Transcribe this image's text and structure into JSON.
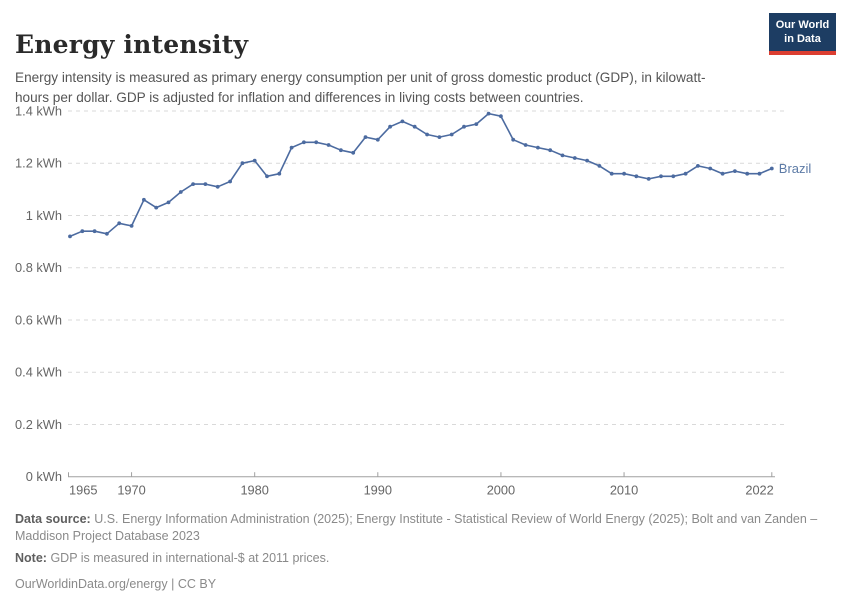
{
  "header": {
    "title": "Energy intensity",
    "subtitle": "Energy intensity is measured as primary energy consumption per unit of gross domestic product (GDP), in kilowatt-hours per dollar. GDP is adjusted for inflation and differences in living costs between countries."
  },
  "logo": {
    "line1": "Our World",
    "line2": "in Data",
    "background_color": "#1d3d63",
    "accent_color": "#dc3e31"
  },
  "chart_data": {
    "type": "line",
    "title": "Energy intensity",
    "unit": "kWh",
    "xlim": [
      1965,
      2022
    ],
    "ylim": [
      0,
      1.4
    ],
    "grid": "horizontal-dashed",
    "legend_position": "end-of-line-label",
    "x_ticks": [
      1965,
      1970,
      1980,
      1990,
      2000,
      2010,
      2022
    ],
    "x_tick_labels": [
      "1965",
      "1970",
      "1980",
      "1990",
      "2000",
      "2010",
      "2022"
    ],
    "y_ticks": [
      0,
      0.2,
      0.4,
      0.6,
      0.8,
      1,
      1.2,
      1.4
    ],
    "y_tick_labels": [
      "0 kWh",
      "0.2 kWh",
      "0.4 kWh",
      "0.6 kWh",
      "0.8 kWh",
      "1 kWh",
      "1.2 kWh",
      "1.4 kWh"
    ],
    "series": [
      {
        "name": "Brazil",
        "color": "#4C6BA0",
        "label_color": "#5d7ba6",
        "years": [
          1965,
          1966,
          1967,
          1968,
          1969,
          1970,
          1971,
          1972,
          1973,
          1974,
          1975,
          1976,
          1977,
          1978,
          1979,
          1980,
          1981,
          1982,
          1983,
          1984,
          1985,
          1986,
          1987,
          1988,
          1989,
          1990,
          1991,
          1992,
          1993,
          1994,
          1995,
          1996,
          1997,
          1998,
          1999,
          2000,
          2001,
          2002,
          2003,
          2004,
          2005,
          2006,
          2007,
          2008,
          2009,
          2010,
          2011,
          2012,
          2013,
          2014,
          2015,
          2016,
          2017,
          2018,
          2019,
          2020,
          2021,
          2022
        ],
        "values": [
          0.92,
          0.94,
          0.94,
          0.93,
          0.97,
          0.96,
          1.06,
          1.03,
          1.05,
          1.09,
          1.12,
          1.12,
          1.11,
          1.13,
          1.2,
          1.21,
          1.15,
          1.16,
          1.26,
          1.28,
          1.28,
          1.27,
          1.25,
          1.24,
          1.3,
          1.29,
          1.34,
          1.36,
          1.34,
          1.31,
          1.3,
          1.31,
          1.34,
          1.35,
          1.39,
          1.38,
          1.29,
          1.27,
          1.26,
          1.25,
          1.23,
          1.22,
          1.21,
          1.19,
          1.16,
          1.16,
          1.15,
          1.14,
          1.15,
          1.15,
          1.16,
          1.19,
          1.18,
          1.16,
          1.17,
          1.16,
          1.16,
          1.18
        ]
      }
    ]
  },
  "footer": {
    "source_label": "Data source:",
    "source_text": "U.S. Energy Information Administration (2025); Energy Institute - Statistical Review of World Energy (2025); Bolt and van Zanden – Maddison Project Database 2023",
    "note_label": "Note:",
    "note_text": "GDP is measured in international-$ at 2011 prices.",
    "credit_link": "OurWorldinData.org/energy",
    "credit_license": "| CC BY"
  }
}
